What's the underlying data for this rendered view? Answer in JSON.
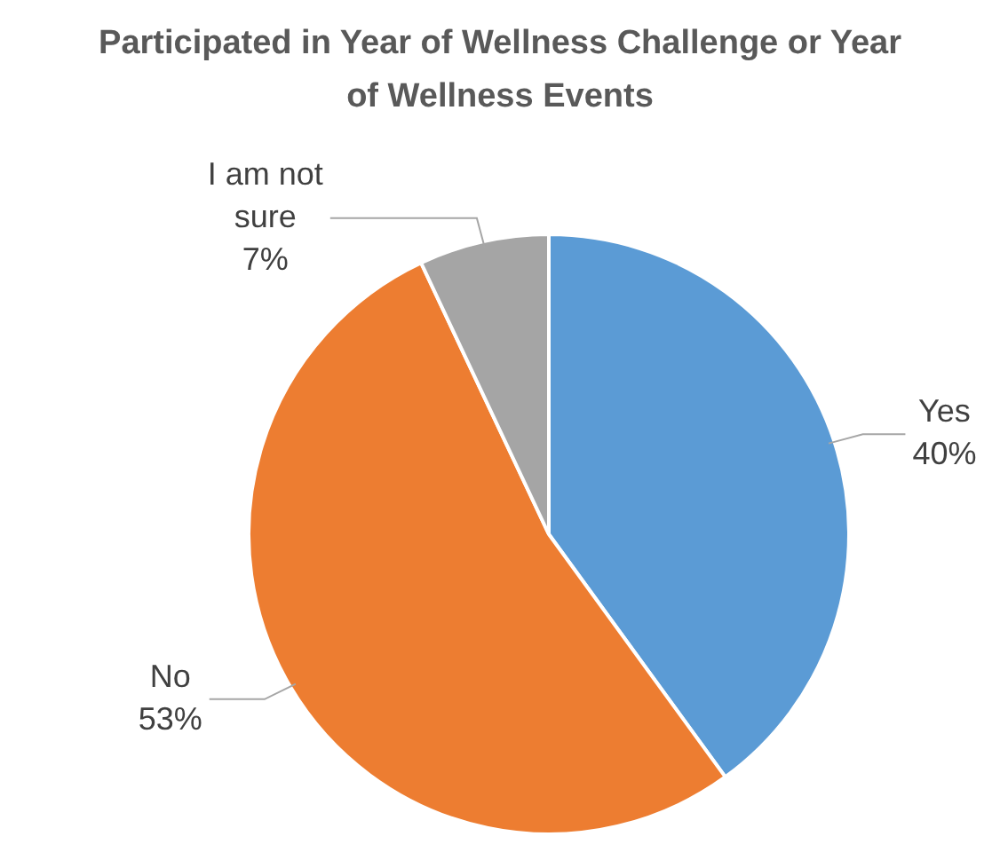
{
  "chart_data": {
    "type": "pie",
    "title": "Participated in Year of Wellness Challenge or Year of Wellness Events",
    "categories": [
      "Yes",
      "No",
      "I am not sure"
    ],
    "values": [
      40,
      53,
      7
    ],
    "value_labels": [
      "40%",
      "53%",
      "7%"
    ],
    "colors": [
      "#5b9bd5",
      "#ed7d31",
      "#a5a5a5"
    ],
    "legend": false
  }
}
